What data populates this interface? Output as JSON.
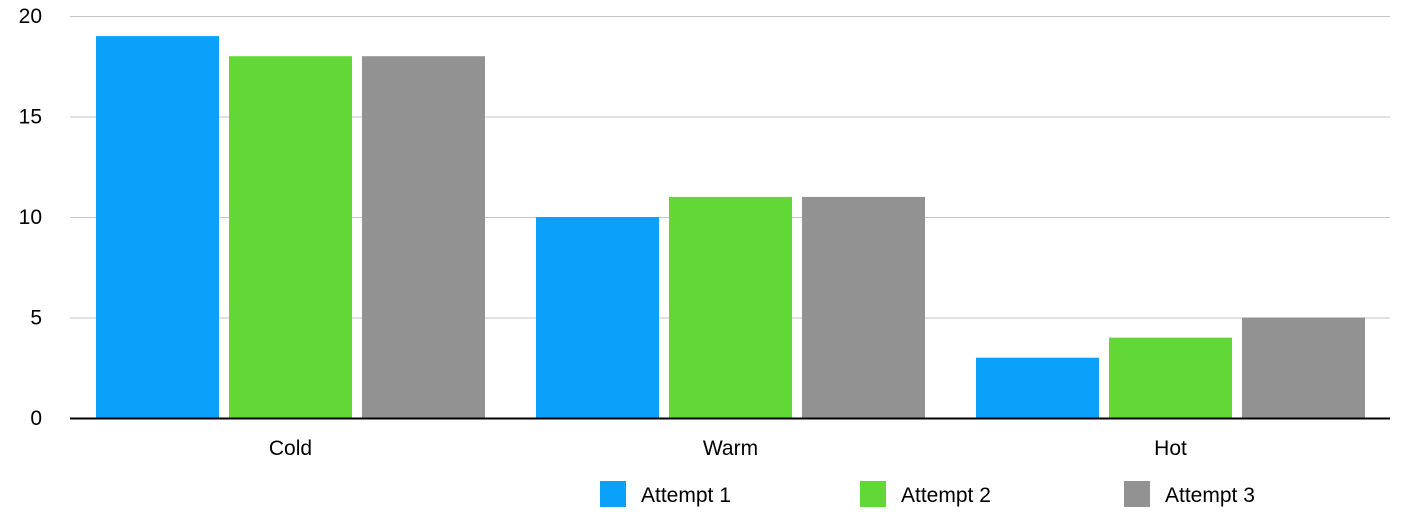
{
  "chart_data": {
    "type": "bar",
    "title": "",
    "xlabel": "",
    "ylabel": "",
    "categories": [
      "Cold",
      "Warm",
      "Hot"
    ],
    "series": [
      {
        "name": "Attempt 1",
        "color": "#0aa1fb",
        "values": [
          19,
          10,
          3
        ]
      },
      {
        "name": "Attempt 2",
        "color": "#62d836",
        "values": [
          18,
          11,
          4
        ]
      },
      {
        "name": "Attempt 3",
        "color": "#929292",
        "values": [
          18,
          11,
          5
        ]
      }
    ],
    "ylim": [
      0,
      20
    ],
    "yticks": [
      "0",
      "5",
      "10",
      "15",
      "20"
    ],
    "grid": true,
    "legend": {
      "position": "bottom-right"
    }
  }
}
